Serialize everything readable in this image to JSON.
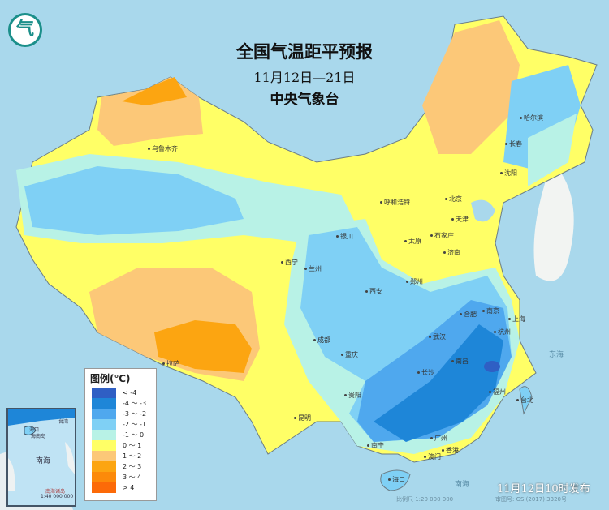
{
  "header": {
    "title": "全国气温距平预报",
    "period": "11月12日—21日",
    "issuer": "中央气象台"
  },
  "logo": {
    "icon": "cma-logo",
    "text": "气"
  },
  "legend": {
    "title": "图例(℃)",
    "items": [
      {
        "label": "< -4",
        "color": "#2f5fc4"
      },
      {
        "label": "-4 ～ -3",
        "color": "#1e86d8"
      },
      {
        "label": "-3 ～ -2",
        "color": "#4fa8ee"
      },
      {
        "label": "-2 ～ -1",
        "color": "#7fd0f5"
      },
      {
        "label": "-1 ～ 0",
        "color": "#b8f2e6"
      },
      {
        "label": "0 ～ 1",
        "color": "#ffff66"
      },
      {
        "label": "1 ～ 2",
        "color": "#fcc878"
      },
      {
        "label": "2 ～ 3",
        "color": "#fca511"
      },
      {
        "label": "3 ～ 4",
        "color": "#fc8a0a"
      },
      {
        "label": "> 4",
        "color": "#fc6a08"
      }
    ]
  },
  "cities": [
    "乌鲁木齐",
    "哈尔滨",
    "长春",
    "沈阳",
    "北京",
    "天津",
    "呼和浩特",
    "石家庄",
    "太原",
    "济南",
    "银川",
    "西宁",
    "兰州",
    "郑州",
    "西安",
    "合肥",
    "南京",
    "上海",
    "杭州",
    "武汉",
    "成都",
    "重庆",
    "拉萨",
    "长沙",
    "南昌",
    "贵阳",
    "昆明",
    "福州",
    "台北",
    "南宁",
    "广州",
    "香港",
    "澳门",
    "海口"
  ],
  "seas": [
    "东海",
    "南海"
  ],
  "inset": {
    "sea": "南海",
    "label": "南海诸岛",
    "scale": "1:40 000 000",
    "cities": [
      "海口",
      "海南岛",
      "台湾"
    ]
  },
  "footer": {
    "published": "11月12日10时发布",
    "scale": "比例尺 1:20 000 000",
    "map_no": "审图号: GS (2017) 3320号"
  }
}
